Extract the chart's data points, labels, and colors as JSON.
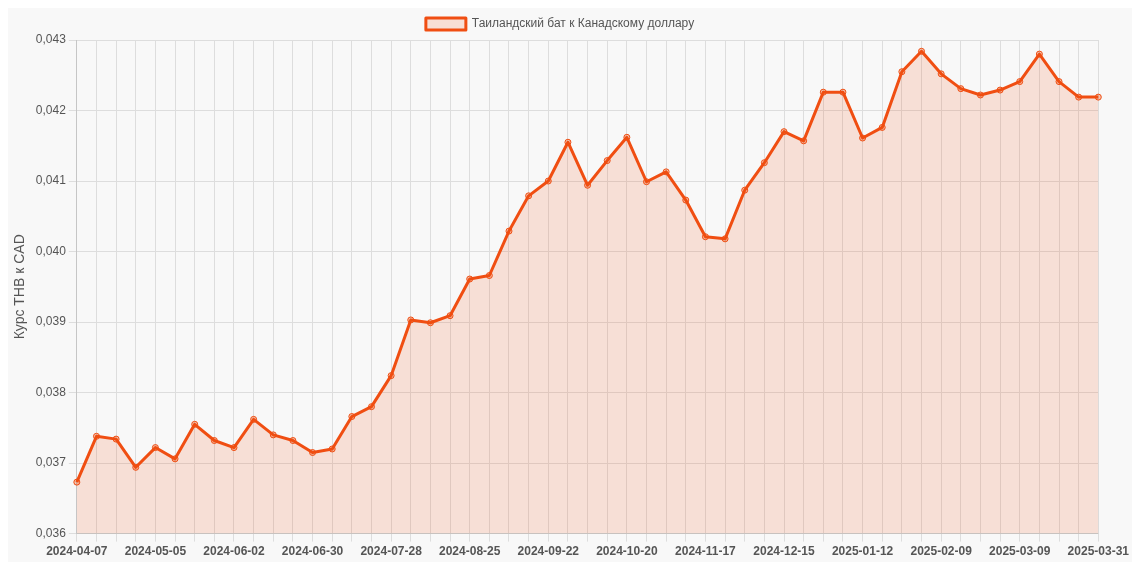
{
  "chart_data": {
    "type": "area",
    "ylabel": "Курс THB к CAD",
    "legend": "top",
    "grid": true,
    "marker": "circle",
    "categories": [
      "2024-04-07",
      null,
      null,
      null,
      "2024-05-05",
      null,
      null,
      null,
      "2024-06-02",
      null,
      null,
      null,
      "2024-06-30",
      null,
      null,
      null,
      "2024-07-28",
      null,
      null,
      null,
      "2024-08-25",
      null,
      null,
      null,
      "2024-09-22",
      null,
      null,
      null,
      "2024-10-20",
      null,
      null,
      null,
      "2024-11-17",
      null,
      null,
      null,
      "2024-12-15",
      null,
      null,
      null,
      "2025-01-12",
      null,
      null,
      null,
      "2025-02-09",
      null,
      null,
      null,
      "2025-03-09",
      null,
      null,
      null,
      "2025-03-31"
    ],
    "ylim": [
      0.036,
      0.043
    ],
    "yticks": [
      {
        "value": 0.036,
        "label": "0,036"
      },
      {
        "value": 0.037,
        "label": "0,037"
      },
      {
        "value": 0.038,
        "label": "0,038"
      },
      {
        "value": 0.039,
        "label": "0,039"
      },
      {
        "value": 0.04,
        "label": "0,040"
      },
      {
        "value": 0.041,
        "label": "0,041"
      },
      {
        "value": 0.042,
        "label": "0,042"
      },
      {
        "value": 0.043,
        "label": "0,043"
      }
    ],
    "series": [
      {
        "name": "Таиландский бат к Канадскому доллару",
        "color": "#f04e12",
        "values": [
          0.03673,
          0.03738,
          0.03734,
          0.03694,
          0.03722,
          0.03706,
          0.03755,
          0.03732,
          0.03722,
          0.03762,
          0.0374,
          0.03732,
          0.03715,
          0.0372,
          0.03766,
          0.0378,
          0.03824,
          0.03903,
          0.03899,
          0.03909,
          0.03961,
          0.03966,
          0.04029,
          0.04079,
          0.041,
          0.04155,
          0.04094,
          0.04129,
          0.04162,
          0.04099,
          0.04113,
          0.04073,
          0.04021,
          0.04018,
          0.04087,
          0.04126,
          0.0417,
          0.04157,
          0.04226,
          0.04226,
          0.04161,
          0.04176,
          0.04255,
          0.04284,
          0.04252,
          0.04231,
          0.04222,
          0.04229,
          0.04241,
          0.0428,
          0.04241,
          0.04219,
          0.04219
        ]
      }
    ]
  }
}
